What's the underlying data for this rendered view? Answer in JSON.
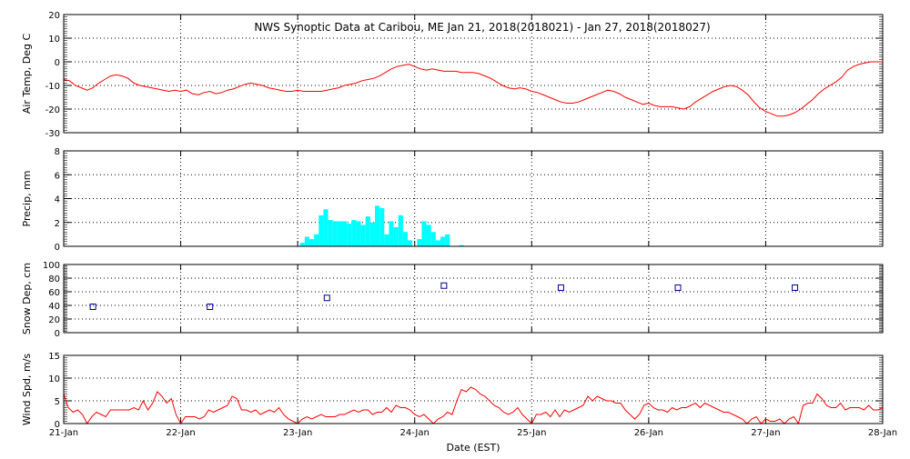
{
  "title": "NWS Synoptic Data at Caribou, ME   Jan 21, 2018(2018021) - Jan 27, 2018(2018027)",
  "xlabel": "Date (EST)",
  "x_tick_labels": [
    "21-Jan",
    "22-Jan",
    "23-Jan",
    "24-Jan",
    "25-Jan",
    "26-Jan",
    "27-Jan",
    "28-Jan"
  ],
  "colors": {
    "temp_line": "#ff0000",
    "precip_bars": "#00ffff",
    "snow_markers": "#00008b",
    "wind_line": "#ff0000",
    "grid": "#000000"
  },
  "chart_data": [
    {
      "type": "line",
      "name": "air-temp",
      "ylabel": "Air Temp, Deg C",
      "ylim": [
        -30,
        20
      ],
      "yticks": [
        -30,
        -20,
        -10,
        0,
        10,
        20
      ],
      "grid": true,
      "x_unit": "days since Jan 21 00:00 EST",
      "points": [
        [
          0.0,
          -7.5
        ],
        [
          0.05,
          -8
        ],
        [
          0.1,
          -10
        ],
        [
          0.15,
          -11
        ],
        [
          0.2,
          -12
        ],
        [
          0.25,
          -11
        ],
        [
          0.3,
          -9
        ],
        [
          0.35,
          -7.5
        ],
        [
          0.4,
          -6
        ],
        [
          0.45,
          -5.5
        ],
        [
          0.5,
          -6
        ],
        [
          0.55,
          -7
        ],
        [
          0.6,
          -9
        ],
        [
          0.65,
          -10
        ],
        [
          0.7,
          -10.5
        ],
        [
          0.75,
          -11
        ],
        [
          0.8,
          -11.5
        ],
        [
          0.85,
          -12
        ],
        [
          0.9,
          -12.5
        ],
        [
          0.95,
          -12
        ],
        [
          1.0,
          -12.5
        ],
        [
          1.05,
          -12
        ],
        [
          1.1,
          -13.5
        ],
        [
          1.15,
          -14
        ],
        [
          1.2,
          -13
        ],
        [
          1.25,
          -12.5
        ],
        [
          1.3,
          -13.5
        ],
        [
          1.35,
          -13
        ],
        [
          1.4,
          -12
        ],
        [
          1.45,
          -11.5
        ],
        [
          1.5,
          -10.5
        ],
        [
          1.55,
          -9.5
        ],
        [
          1.6,
          -9
        ],
        [
          1.65,
          -9.5
        ],
        [
          1.7,
          -10
        ],
        [
          1.75,
          -11
        ],
        [
          1.8,
          -11.5
        ],
        [
          1.85,
          -12
        ],
        [
          1.9,
          -12.5
        ],
        [
          1.95,
          -12.5
        ],
        [
          2.0,
          -12
        ],
        [
          2.05,
          -12.5
        ],
        [
          2.1,
          -12.5
        ],
        [
          2.15,
          -12.5
        ],
        [
          2.2,
          -12.5
        ],
        [
          2.25,
          -12
        ],
        [
          2.3,
          -11.5
        ],
        [
          2.35,
          -11
        ],
        [
          2.4,
          -10
        ],
        [
          2.45,
          -9.5
        ],
        [
          2.5,
          -9
        ],
        [
          2.55,
          -8
        ],
        [
          2.6,
          -7.5
        ],
        [
          2.65,
          -7
        ],
        [
          2.7,
          -6
        ],
        [
          2.75,
          -4.5
        ],
        [
          2.8,
          -3
        ],
        [
          2.85,
          -2
        ],
        [
          2.9,
          -1.5
        ],
        [
          2.95,
          -1
        ],
        [
          3.0,
          -2
        ],
        [
          3.05,
          -3
        ],
        [
          3.1,
          -3.5
        ],
        [
          3.15,
          -3
        ],
        [
          3.2,
          -3.5
        ],
        [
          3.25,
          -4
        ],
        [
          3.3,
          -4
        ],
        [
          3.35,
          -4
        ],
        [
          3.4,
          -4.5
        ],
        [
          3.45,
          -4.5
        ],
        [
          3.5,
          -4.5
        ],
        [
          3.55,
          -5
        ],
        [
          3.6,
          -6
        ],
        [
          3.65,
          -7
        ],
        [
          3.7,
          -8.5
        ],
        [
          3.75,
          -10
        ],
        [
          3.8,
          -11
        ],
        [
          3.85,
          -11.5
        ],
        [
          3.9,
          -11
        ],
        [
          3.95,
          -11.5
        ],
        [
          4.0,
          -12.5
        ],
        [
          4.05,
          -13
        ],
        [
          4.1,
          -14
        ],
        [
          4.15,
          -15
        ],
        [
          4.2,
          -16
        ],
        [
          4.25,
          -17
        ],
        [
          4.3,
          -17.5
        ],
        [
          4.35,
          -17.5
        ],
        [
          4.4,
          -17
        ],
        [
          4.45,
          -16
        ],
        [
          4.5,
          -15
        ],
        [
          4.55,
          -14
        ],
        [
          4.6,
          -13
        ],
        [
          4.65,
          -12
        ],
        [
          4.7,
          -12.5
        ],
        [
          4.75,
          -13.5
        ],
        [
          4.8,
          -15
        ],
        [
          4.85,
          -16
        ],
        [
          4.9,
          -17
        ],
        [
          4.95,
          -18
        ],
        [
          5.0,
          -17.5
        ],
        [
          5.05,
          -18.5
        ],
        [
          5.1,
          -19
        ],
        [
          5.15,
          -19
        ],
        [
          5.2,
          -19
        ],
        [
          5.25,
          -19.5
        ],
        [
          5.3,
          -20
        ],
        [
          5.35,
          -19
        ],
        [
          5.4,
          -17
        ],
        [
          5.45,
          -15.5
        ],
        [
          5.5,
          -14
        ],
        [
          5.55,
          -12.5
        ],
        [
          5.6,
          -11.5
        ],
        [
          5.65,
          -10.5
        ],
        [
          5.7,
          -10
        ],
        [
          5.75,
          -10.5
        ],
        [
          5.8,
          -12
        ],
        [
          5.85,
          -14
        ],
        [
          5.9,
          -17
        ],
        [
          5.95,
          -19.5
        ],
        [
          6.0,
          -21
        ],
        [
          6.05,
          -22
        ],
        [
          6.1,
          -23
        ],
        [
          6.15,
          -23
        ],
        [
          6.2,
          -22.5
        ],
        [
          6.25,
          -21.5
        ],
        [
          6.3,
          -20
        ],
        [
          6.35,
          -18
        ],
        [
          6.4,
          -16
        ],
        [
          6.45,
          -13.5
        ],
        [
          6.5,
          -11.5
        ],
        [
          6.55,
          -10
        ],
        [
          6.6,
          -8.5
        ],
        [
          6.65,
          -6.5
        ],
        [
          6.7,
          -3.5
        ],
        [
          6.75,
          -2
        ],
        [
          6.8,
          -1
        ],
        [
          6.85,
          -0.5
        ],
        [
          6.9,
          0
        ],
        [
          6.95,
          0
        ],
        [
          7.0,
          0
        ]
      ]
    },
    {
      "type": "bar",
      "name": "precip",
      "ylabel": "Precip, mm",
      "ylim": [
        0,
        8
      ],
      "yticks": [
        0,
        2,
        4,
        6,
        8
      ],
      "grid": true,
      "bar_width_days": 0.04,
      "bars": [
        [
          2.04,
          0.3
        ],
        [
          2.08,
          0.8
        ],
        [
          2.12,
          0.6
        ],
        [
          2.16,
          1.0
        ],
        [
          2.2,
          2.6
        ],
        [
          2.24,
          3.1
        ],
        [
          2.28,
          2.2
        ],
        [
          2.32,
          2.1
        ],
        [
          2.36,
          2.1
        ],
        [
          2.4,
          2.1
        ],
        [
          2.44,
          1.9
        ],
        [
          2.48,
          2.2
        ],
        [
          2.52,
          2.1
        ],
        [
          2.56,
          1.8
        ],
        [
          2.6,
          2.5
        ],
        [
          2.64,
          2.0
        ],
        [
          2.68,
          3.4
        ],
        [
          2.72,
          3.2
        ],
        [
          2.76,
          1.0
        ],
        [
          2.8,
          2.1
        ],
        [
          2.84,
          1.6
        ],
        [
          2.88,
          2.6
        ],
        [
          2.92,
          1.2
        ],
        [
          2.96,
          0.5
        ],
        [
          3.04,
          0.6
        ],
        [
          3.08,
          2.1
        ],
        [
          3.12,
          1.8
        ],
        [
          3.16,
          1.2
        ],
        [
          3.2,
          0.5
        ],
        [
          3.24,
          0.8
        ],
        [
          3.28,
          1.0
        ],
        [
          3.4,
          0.1
        ]
      ]
    },
    {
      "type": "scatter",
      "name": "snow-depth",
      "ylabel": "Snow Dep, cm",
      "ylim": [
        0,
        100
      ],
      "yticks": [
        0,
        20,
        40,
        60,
        80,
        100
      ],
      "grid": true,
      "points": [
        [
          0.25,
          38
        ],
        [
          1.25,
          38
        ],
        [
          2.25,
          51
        ],
        [
          3.25,
          69
        ],
        [
          4.25,
          66
        ],
        [
          5.25,
          66
        ],
        [
          6.25,
          66
        ]
      ]
    },
    {
      "type": "line",
      "name": "wind-speed",
      "ylabel": "Wind Spd, m/s",
      "ylim": [
        0,
        15
      ],
      "yticks": [
        0,
        5,
        10,
        15
      ],
      "grid": true,
      "points": [
        [
          0.0,
          6.5
        ],
        [
          0.04,
          3.5
        ],
        [
          0.08,
          2.5
        ],
        [
          0.12,
          3
        ],
        [
          0.16,
          2
        ],
        [
          0.2,
          0
        ],
        [
          0.24,
          1.5
        ],
        [
          0.28,
          2.5
        ],
        [
          0.32,
          2
        ],
        [
          0.36,
          1.5
        ],
        [
          0.4,
          3
        ],
        [
          0.44,
          3
        ],
        [
          0.48,
          3
        ],
        [
          0.52,
          3
        ],
        [
          0.56,
          3
        ],
        [
          0.6,
          3.5
        ],
        [
          0.64,
          3
        ],
        [
          0.68,
          5
        ],
        [
          0.72,
          3
        ],
        [
          0.76,
          4.5
        ],
        [
          0.8,
          7
        ],
        [
          0.84,
          6
        ],
        [
          0.88,
          4.5
        ],
        [
          0.92,
          5.5
        ],
        [
          0.96,
          2
        ],
        [
          1.0,
          0
        ],
        [
          1.04,
          1.5
        ],
        [
          1.08,
          1.5
        ],
        [
          1.12,
          1.5
        ],
        [
          1.16,
          1
        ],
        [
          1.2,
          1.5
        ],
        [
          1.24,
          3
        ],
        [
          1.28,
          2.5
        ],
        [
          1.32,
          3
        ],
        [
          1.36,
          3.5
        ],
        [
          1.4,
          4
        ],
        [
          1.44,
          6
        ],
        [
          1.48,
          5.5
        ],
        [
          1.52,
          3
        ],
        [
          1.56,
          3
        ],
        [
          1.6,
          2.5
        ],
        [
          1.64,
          3
        ],
        [
          1.68,
          2
        ],
        [
          1.72,
          2.5
        ],
        [
          1.76,
          3
        ],
        [
          1.8,
          2.5
        ],
        [
          1.84,
          3.5
        ],
        [
          1.88,
          2
        ],
        [
          1.92,
          1
        ],
        [
          1.96,
          0.5
        ],
        [
          2.0,
          0
        ],
        [
          2.04,
          1
        ],
        [
          2.08,
          1.5
        ],
        [
          2.12,
          1
        ],
        [
          2.16,
          1.5
        ],
        [
          2.2,
          2
        ],
        [
          2.24,
          1.5
        ],
        [
          2.28,
          1.5
        ],
        [
          2.32,
          1.5
        ],
        [
          2.36,
          2
        ],
        [
          2.4,
          2
        ],
        [
          2.44,
          2.5
        ],
        [
          2.48,
          3
        ],
        [
          2.52,
          2.5
        ],
        [
          2.56,
          3
        ],
        [
          2.6,
          3
        ],
        [
          2.64,
          2
        ],
        [
          2.68,
          2.5
        ],
        [
          2.72,
          2.5
        ],
        [
          2.76,
          3.5
        ],
        [
          2.8,
          2.5
        ],
        [
          2.84,
          4
        ],
        [
          2.88,
          3.5
        ],
        [
          2.92,
          3.5
        ],
        [
          2.96,
          3
        ],
        [
          3.0,
          2
        ],
        [
          3.04,
          1.5
        ],
        [
          3.08,
          2
        ],
        [
          3.12,
          1
        ],
        [
          3.16,
          0
        ],
        [
          3.2,
          1
        ],
        [
          3.24,
          1.5
        ],
        [
          3.28,
          2.5
        ],
        [
          3.32,
          2
        ],
        [
          3.36,
          5
        ],
        [
          3.4,
          7.5
        ],
        [
          3.44,
          7
        ],
        [
          3.48,
          8
        ],
        [
          3.52,
          7.5
        ],
        [
          3.56,
          6.5
        ],
        [
          3.6,
          6
        ],
        [
          3.64,
          5
        ],
        [
          3.68,
          4
        ],
        [
          3.72,
          3.5
        ],
        [
          3.76,
          2.5
        ],
        [
          3.8,
          2
        ],
        [
          3.84,
          2.5
        ],
        [
          3.88,
          3.5
        ],
        [
          3.92,
          2
        ],
        [
          3.96,
          1
        ],
        [
          4.0,
          0
        ],
        [
          4.04,
          2
        ],
        [
          4.08,
          2
        ],
        [
          4.12,
          2.5
        ],
        [
          4.16,
          1.5
        ],
        [
          4.2,
          3
        ],
        [
          4.24,
          1.5
        ],
        [
          4.28,
          3
        ],
        [
          4.32,
          2.5
        ],
        [
          4.36,
          3
        ],
        [
          4.4,
          3.5
        ],
        [
          4.44,
          4
        ],
        [
          4.48,
          6
        ],
        [
          4.52,
          5
        ],
        [
          4.56,
          6
        ],
        [
          4.6,
          5.5
        ],
        [
          4.64,
          5
        ],
        [
          4.68,
          5
        ],
        [
          4.72,
          4.5
        ],
        [
          4.76,
          4.5
        ],
        [
          4.8,
          3
        ],
        [
          4.84,
          2
        ],
        [
          4.88,
          1
        ],
        [
          4.92,
          2
        ],
        [
          4.96,
          4
        ],
        [
          5.0,
          4.5
        ],
        [
          5.04,
          3.5
        ],
        [
          5.08,
          3
        ],
        [
          5.12,
          3
        ],
        [
          5.16,
          2.5
        ],
        [
          5.2,
          3.5
        ],
        [
          5.24,
          3
        ],
        [
          5.28,
          3.5
        ],
        [
          5.32,
          3.5
        ],
        [
          5.36,
          4
        ],
        [
          5.4,
          4.5
        ],
        [
          5.44,
          3.5
        ],
        [
          5.48,
          4.5
        ],
        [
          5.52,
          4
        ],
        [
          5.56,
          3.5
        ],
        [
          5.6,
          3
        ],
        [
          5.64,
          2.5
        ],
        [
          5.68,
          2.5
        ],
        [
          5.72,
          2
        ],
        [
          5.76,
          1.5
        ],
        [
          5.8,
          1
        ],
        [
          5.84,
          0
        ],
        [
          5.88,
          1
        ],
        [
          5.92,
          1.5
        ],
        [
          5.96,
          0
        ],
        [
          6.0,
          1
        ],
        [
          6.04,
          0.5
        ],
        [
          6.08,
          0.5
        ],
        [
          6.12,
          1
        ],
        [
          6.16,
          0
        ],
        [
          6.2,
          1
        ],
        [
          6.24,
          1.5
        ],
        [
          6.28,
          0
        ],
        [
          6.32,
          4
        ],
        [
          6.36,
          4.5
        ],
        [
          6.4,
          4.5
        ],
        [
          6.44,
          6.5
        ],
        [
          6.48,
          5.5
        ],
        [
          6.52,
          4
        ],
        [
          6.56,
          3.5
        ],
        [
          6.6,
          3.5
        ],
        [
          6.64,
          4.5
        ],
        [
          6.68,
          3
        ],
        [
          6.72,
          3.5
        ],
        [
          6.76,
          3.5
        ],
        [
          6.8,
          3.5
        ],
        [
          6.84,
          3
        ],
        [
          6.88,
          4
        ],
        [
          6.92,
          3
        ],
        [
          6.96,
          3
        ],
        [
          7.0,
          3.5
        ]
      ]
    }
  ]
}
